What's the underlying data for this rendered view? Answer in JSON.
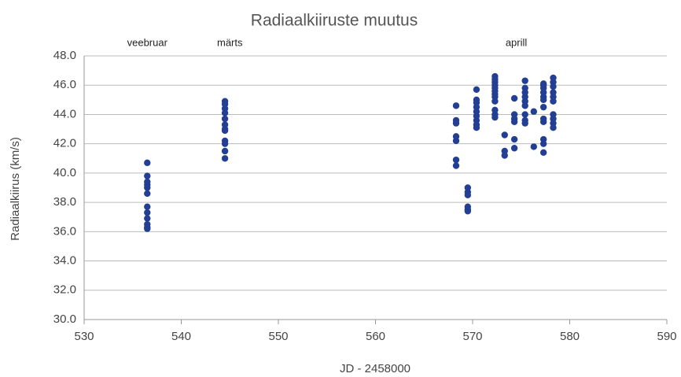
{
  "chart_data": {
    "type": "scatter",
    "title": "Radiaalkiiruste muutus",
    "xlabel": "JD - 2458000",
    "ylabel": "Radiaalkiirus (km/s)",
    "annotations": [
      {
        "text": "veebruar",
        "x": 536.5
      },
      {
        "text": "märts",
        "x": 545
      },
      {
        "text": "aprill",
        "x": 574.5
      }
    ],
    "color": "#233f94",
    "x": [
      536.5,
      536.5,
      536.5,
      536.5,
      536.5,
      536.5,
      536.5,
      536.5,
      536.5,
      536.5,
      536.5,
      536.5,
      544.5,
      544.5,
      544.5,
      544.5,
      544.5,
      544.5,
      544.5,
      544.5,
      544.5,
      544.5,
      544.5,
      544.5,
      568.3,
      568.3,
      568.3,
      568.3,
      568.3,
      568.3,
      568.3,
      569.5,
      569.5,
      569.5,
      569.5,
      569.5,
      569.5,
      570.4,
      570.4,
      570.4,
      570.4,
      570.4,
      570.4,
      570.4,
      570.4,
      570.4,
      572.3,
      572.3,
      572.3,
      572.3,
      572.3,
      572.3,
      572.3,
      572.3,
      572.3,
      572.3,
      572.3,
      572.3,
      573.3,
      573.3,
      573.3,
      574.3,
      574.3,
      574.3,
      574.3,
      574.3,
      574.3,
      575.4,
      575.4,
      575.4,
      575.4,
      575.4,
      575.4,
      575.4,
      575.4,
      575.4,
      576.3,
      576.3,
      577.3,
      577.3,
      577.3,
      577.3,
      577.3,
      577.3,
      577.3,
      577.3,
      577.3,
      577.3,
      577.3,
      577.3,
      578.3,
      578.3,
      578.3,
      578.3,
      578.3,
      578.3,
      578.3,
      578.3,
      578.3,
      578.3
    ],
    "values": [
      40.7,
      39.8,
      39.4,
      39.2,
      39.0,
      38.6,
      37.7,
      37.3,
      36.9,
      36.5,
      36.3,
      36.2,
      44.9,
      44.7,
      44.4,
      44.1,
      43.7,
      43.3,
      43.0,
      42.9,
      42.2,
      42.0,
      41.5,
      41.0,
      44.6,
      43.6,
      43.4,
      42.5,
      42.2,
      40.9,
      40.5,
      39.0,
      38.7,
      38.5,
      37.7,
      37.5,
      37.4,
      45.7,
      45.0,
      44.8,
      44.5,
      44.2,
      43.9,
      43.6,
      43.3,
      43.1,
      46.6,
      46.4,
      46.2,
      46.0,
      45.8,
      45.6,
      45.4,
      45.2,
      44.9,
      44.3,
      44.0,
      43.8,
      42.6,
      41.5,
      41.2,
      45.1,
      44.0,
      43.7,
      43.5,
      42.3,
      41.7,
      46.3,
      45.8,
      45.5,
      45.2,
      44.9,
      44.6,
      44.0,
      43.6,
      43.4,
      44.2,
      41.8,
      46.1,
      46.0,
      45.8,
      45.5,
      45.2,
      45.0,
      44.5,
      43.7,
      43.5,
      42.3,
      42.0,
      41.4,
      46.5,
      46.2,
      45.9,
      45.5,
      45.2,
      44.9,
      44.0,
      43.7,
      43.4,
      43.1
    ],
    "xlim": [
      530,
      590
    ],
    "xticks": [
      530,
      540,
      550,
      560,
      570,
      580,
      590
    ],
    "ylim": [
      30,
      48
    ],
    "yticks": [
      {
        "value": 30,
        "label": "30.0"
      },
      {
        "value": 32,
        "label": "32.0"
      },
      {
        "value": 34,
        "label": "34.0"
      },
      {
        "value": 36,
        "label": "36.0"
      },
      {
        "value": 38,
        "label": "38.0"
      },
      {
        "value": 40,
        "label": "40.0"
      },
      {
        "value": 42,
        "label": "42.0"
      },
      {
        "value": 44,
        "label": "44.0"
      },
      {
        "value": 46,
        "label": "46.0"
      },
      {
        "value": 48,
        "label": "48.0"
      }
    ],
    "grid": true
  }
}
